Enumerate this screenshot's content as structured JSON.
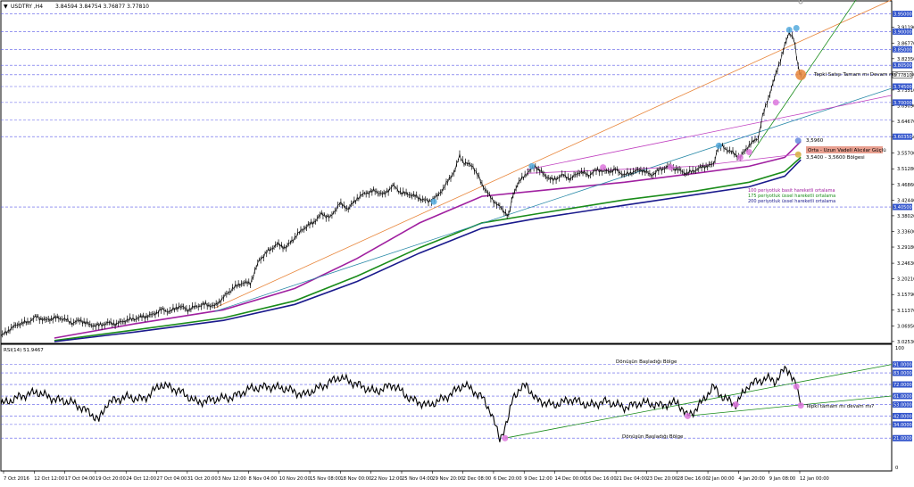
{
  "window": {
    "symbol_title": "USDTRY ,H4",
    "ohlc": "3.84594 3.84754 3.76877 3.77810",
    "menu_icon": "triangle-down-icon",
    "scroll_icon": "circle-icon"
  },
  "chart_data": [
    {
      "type": "line",
      "name": "price-panel",
      "title": "USDTRY ,H4",
      "ylim": [
        3.025,
        3.959
      ],
      "yticks": [
        "3.91190",
        "3.86770",
        "3.82350",
        "3.77930",
        "3.73510",
        "3.69090",
        "3.64670",
        "3.60250",
        "3.55700",
        "3.51280",
        "3.46860",
        "3.42440",
        "3.38020",
        "3.33600",
        "3.29180",
        "3.24630",
        "3.20210",
        "3.15790",
        "3.11370",
        "3.06950",
        "3.02530"
      ],
      "xticks": [
        "7 Oct 2016",
        "12 Oct 12:00",
        "17 Oct 04:00",
        "19 Oct 20:00",
        "24 Oct 12:00",
        "27 Oct 04:00",
        "31 Oct 20:00",
        "3 Nov 12:00",
        "8 Nov 04:00",
        "10 Nov 20:00",
        "15 Nov 08:00",
        "18 Nov 00:00",
        "22 Nov 12:00",
        "25 Nov 04:00",
        "29 Nov 20:00",
        "2 Dec 08:00",
        "6 Dec 20:00",
        "9 Dec 12:00",
        "14 Dec 00:00",
        "16 Dec 16:00",
        "21 Dec 04:00",
        "23 Dec 20:00",
        "28 Dec 16:00",
        "2 Jan 00:00",
        "4 Jan 20:00",
        "9 Jan 08:00",
        "12 Jan 00:00"
      ],
      "price_marks": [
        {
          "price": "3.95000",
          "value": 3.95
        },
        {
          "price": "3.90000",
          "value": 3.9
        },
        {
          "price": "3.85000",
          "value": 3.85
        },
        {
          "price": "3.80500",
          "value": 3.805
        },
        {
          "price": "3.77810",
          "value": 3.7781
        },
        {
          "price": "3.74500",
          "value": 3.745
        },
        {
          "price": "3.70000",
          "value": 3.7
        },
        {
          "price": "3.60350",
          "value": 3.6035
        },
        {
          "price": "3.40500",
          "value": 3.405
        }
      ],
      "hlines": [
        3.95,
        3.9,
        3.85,
        3.805,
        3.7781,
        3.745,
        3.7,
        3.65,
        3.6035,
        3.405
      ],
      "close_path": [
        [
          0,
          3.04
        ],
        [
          10,
          3.06
        ],
        [
          20,
          3.075
        ],
        [
          30,
          3.08
        ],
        [
          40,
          3.095
        ],
        [
          50,
          3.085
        ],
        [
          60,
          3.092
        ],
        [
          70,
          3.09
        ],
        [
          80,
          3.078
        ],
        [
          90,
          3.085
        ],
        [
          100,
          3.072
        ],
        [
          110,
          3.07
        ],
        [
          120,
          3.078
        ],
        [
          130,
          3.075
        ],
        [
          140,
          3.085
        ],
        [
          150,
          3.09
        ],
        [
          160,
          3.095
        ],
        [
          170,
          3.1
        ],
        [
          180,
          3.115
        ],
        [
          190,
          3.11
        ],
        [
          200,
          3.125
        ],
        [
          210,
          3.115
        ],
        [
          220,
          3.125
        ],
        [
          230,
          3.13
        ],
        [
          240,
          3.125
        ],
        [
          250,
          3.15
        ],
        [
          260,
          3.175
        ],
        [
          270,
          3.19
        ],
        [
          280,
          3.19
        ],
        [
          290,
          3.255
        ],
        [
          300,
          3.28
        ],
        [
          310,
          3.3
        ],
        [
          320,
          3.29
        ],
        [
          330,
          3.32
        ],
        [
          340,
          3.345
        ],
        [
          350,
          3.36
        ],
        [
          360,
          3.385
        ],
        [
          370,
          3.375
        ],
        [
          380,
          3.415
        ],
        [
          390,
          3.4
        ],
        [
          400,
          3.43
        ],
        [
          410,
          3.445
        ],
        [
          420,
          3.45
        ],
        [
          430,
          3.44
        ],
        [
          440,
          3.465
        ],
        [
          450,
          3.445
        ],
        [
          460,
          3.44
        ],
        [
          470,
          3.43
        ],
        [
          480,
          3.42
        ],
        [
          490,
          3.435
        ],
        [
          500,
          3.47
        ],
        [
          510,
          3.51
        ],
        [
          515,
          3.55
        ],
        [
          520,
          3.53
        ],
        [
          530,
          3.52
        ],
        [
          540,
          3.47
        ],
        [
          550,
          3.43
        ],
        [
          560,
          3.405
        ],
        [
          570,
          3.38
        ],
        [
          575,
          3.44
        ],
        [
          580,
          3.47
        ],
        [
          590,
          3.5
        ],
        [
          600,
          3.52
        ],
        [
          610,
          3.495
        ],
        [
          620,
          3.48
        ],
        [
          630,
          3.495
        ],
        [
          640,
          3.485
        ],
        [
          650,
          3.505
        ],
        [
          660,
          3.495
        ],
        [
          670,
          3.51
        ],
        [
          680,
          3.505
        ],
        [
          690,
          3.51
        ],
        [
          700,
          3.495
        ],
        [
          710,
          3.505
        ],
        [
          720,
          3.51
        ],
        [
          730,
          3.495
        ],
        [
          740,
          3.51
        ],
        [
          750,
          3.52
        ],
        [
          760,
          3.51
        ],
        [
          770,
          3.5
        ],
        [
          780,
          3.51
        ],
        [
          790,
          3.52
        ],
        [
          800,
          3.525
        ],
        [
          805,
          3.575
        ],
        [
          810,
          3.575
        ],
        [
          820,
          3.56
        ],
        [
          830,
          3.545
        ],
        [
          840,
          3.58
        ],
        [
          850,
          3.6
        ],
        [
          855,
          3.66
        ],
        [
          860,
          3.7
        ],
        [
          865,
          3.74
        ],
        [
          870,
          3.78
        ],
        [
          875,
          3.82
        ],
        [
          880,
          3.86
        ],
        [
          885,
          3.9
        ],
        [
          890,
          3.88
        ],
        [
          895,
          3.8
        ],
        [
          898,
          3.778
        ]
      ],
      "moving_averages": [
        {
          "name": "100 periyotluk basit hareketli ortalama",
          "color": "#a020a0",
          "points": [
            [
              60,
              3.035
            ],
            [
              150,
              3.075
            ],
            [
              250,
              3.115
            ],
            [
              330,
              3.175
            ],
            [
              400,
              3.26
            ],
            [
              470,
              3.36
            ],
            [
              540,
              3.435
            ],
            [
              600,
              3.45
            ],
            [
              700,
              3.475
            ],
            [
              780,
              3.5
            ],
            [
              840,
              3.52
            ],
            [
              880,
              3.545
            ],
            [
              898,
              3.59
            ]
          ]
        },
        {
          "name": "175 periyotluk üssel hareketli ortalama",
          "color": "#1a8c1a",
          "points": [
            [
              60,
              3.028
            ],
            [
              150,
              3.058
            ],
            [
              250,
              3.092
            ],
            [
              330,
              3.14
            ],
            [
              400,
              3.21
            ],
            [
              470,
              3.29
            ],
            [
              540,
              3.36
            ],
            [
              600,
              3.385
            ],
            [
              700,
              3.425
            ],
            [
              780,
              3.45
            ],
            [
              840,
              3.475
            ],
            [
              880,
              3.505
            ],
            [
              898,
              3.545
            ]
          ]
        },
        {
          "name": "200 periyotluk üssel hareketli ortalama",
          "color": "#1a1a8c",
          "points": [
            [
              60,
              3.025
            ],
            [
              150,
              3.052
            ],
            [
              250,
              3.085
            ],
            [
              330,
              3.13
            ],
            [
              400,
              3.195
            ],
            [
              470,
              3.275
            ],
            [
              540,
              3.345
            ],
            [
              600,
              3.372
            ],
            [
              700,
              3.41
            ],
            [
              780,
              3.44
            ],
            [
              840,
              3.462
            ],
            [
              880,
              3.492
            ],
            [
              898,
              3.538
            ]
          ]
        }
      ],
      "trendlines": [
        {
          "color": "#e8853a",
          "points": [
            [
              240,
              3.12
            ],
            [
              1000,
              3.99
            ]
          ]
        },
        {
          "color": "#1a8c1a",
          "points": [
            [
              840,
              3.545
            ],
            [
              960,
              3.99
            ]
          ]
        },
        {
          "color": "#2a8aa8",
          "points": [
            [
              240,
              3.11
            ],
            [
              1000,
              3.74
            ]
          ]
        },
        {
          "color": "#c040c0",
          "points": [
            [
              590,
              3.51
            ],
            [
              1000,
              3.72
            ]
          ]
        },
        {
          "color": "#c040c0",
          "points": [
            [
              590,
              3.5
            ],
            [
              780,
              3.52
            ],
            [
              898,
              3.555
            ]
          ]
        }
      ],
      "marked_points": [
        {
          "x": 885,
          "y": 3.905,
          "color": "#55aadd"
        },
        {
          "x": 893,
          "y": 3.91,
          "color": "#55aadd"
        },
        {
          "x": 870,
          "y": 3.7,
          "color": "#dd77dd"
        },
        {
          "x": 806,
          "y": 3.578,
          "color": "#55aadd"
        },
        {
          "x": 830,
          "y": 3.545,
          "color": "#dd77dd"
        },
        {
          "x": 840,
          "y": 3.56,
          "color": "#dd77dd"
        },
        {
          "x": 752,
          "y": 3.517,
          "color": "#dd77dd"
        },
        {
          "x": 676,
          "y": 3.517,
          "color": "#dd77dd"
        },
        {
          "x": 596,
          "y": 3.52,
          "color": "#55aadd"
        },
        {
          "x": 486,
          "y": 3.42,
          "color": "#55aadd"
        },
        {
          "x": 895,
          "y": 3.592,
          "color": "#6688dd"
        },
        {
          "x": 895,
          "y": 3.553,
          "color": "#d8b040"
        },
        {
          "x": 898,
          "y": 3.778,
          "color": "#e8853a"
        }
      ],
      "annotations": {
        "tepki": "Tepki Satışı Tamam mı Devam mı?",
        "orta_uzun": "Orta - Uzun Vadeli Alıcılar Güçlü",
        "level_3560": "3,5960",
        "zone": "3,5400 - 3,5600 Bölgesi",
        "legend": [
          "100 periyotluk basit hareketli ortalama",
          "175 periyotluk üssel hareketli ortalama",
          "200 periyotluk üssel hareketli ortalama"
        ]
      },
      "grid": false
    },
    {
      "type": "line",
      "name": "rsi-panel",
      "title": "RSI(14) 51.9467",
      "ylim": [
        0,
        100
      ],
      "yticks_top": "100",
      "yticks_bottom": "0",
      "levels": [
        {
          "label": "91.0000",
          "value": 91
        },
        {
          "label": "83.0000",
          "value": 83
        },
        {
          "label": "72.0000",
          "value": 72
        },
        {
          "label": "61.0000",
          "value": 61
        },
        {
          "label": "53.0000",
          "value": 53
        },
        {
          "label": "42.0000",
          "value": 42
        },
        {
          "label": "34.0000",
          "value": 34
        },
        {
          "label": "21.0000",
          "value": 21
        }
      ],
      "rsi_path": [
        [
          0,
          53
        ],
        [
          20,
          60
        ],
        [
          40,
          65
        ],
        [
          60,
          58
        ],
        [
          80,
          55
        ],
        [
          100,
          45
        ],
        [
          110,
          38
        ],
        [
          120,
          55
        ],
        [
          140,
          60
        ],
        [
          160,
          58
        ],
        [
          180,
          72
        ],
        [
          200,
          66
        ],
        [
          220,
          55
        ],
        [
          240,
          58
        ],
        [
          260,
          60
        ],
        [
          280,
          68
        ],
        [
          300,
          70
        ],
        [
          320,
          68
        ],
        [
          340,
          62
        ],
        [
          360,
          70
        ],
        [
          380,
          79
        ],
        [
          400,
          72
        ],
        [
          420,
          65
        ],
        [
          440,
          72
        ],
        [
          460,
          58
        ],
        [
          480,
          52
        ],
        [
          500,
          60
        ],
        [
          520,
          72
        ],
        [
          540,
          60
        ],
        [
          550,
          46
        ],
        [
          560,
          20
        ],
        [
          570,
          40
        ],
        [
          575,
          61
        ],
        [
          590,
          72
        ],
        [
          600,
          58
        ],
        [
          620,
          52
        ],
        [
          640,
          58
        ],
        [
          660,
          52
        ],
        [
          680,
          56
        ],
        [
          700,
          50
        ],
        [
          720,
          55
        ],
        [
          740,
          52
        ],
        [
          760,
          55
        ],
        [
          770,
          42
        ],
        [
          780,
          48
        ],
        [
          800,
          70
        ],
        [
          810,
          60
        ],
        [
          825,
          53
        ],
        [
          840,
          72
        ],
        [
          860,
          78
        ],
        [
          870,
          75
        ],
        [
          880,
          87
        ],
        [
          885,
          85
        ],
        [
          893,
          70
        ],
        [
          898,
          52
        ]
      ],
      "trendlines": [
        {
          "color": "#1a8c1a",
          "points": [
            [
              566,
              21
            ],
            [
              1000,
              91
            ]
          ]
        },
        {
          "color": "#1a8c1a",
          "points": [
            [
              770,
              42
            ],
            [
              1000,
              61
            ]
          ]
        }
      ],
      "marked_points": [
        {
          "x": 566,
          "y": 21,
          "color": "#dd77dd"
        },
        {
          "x": 771,
          "y": 42,
          "color": "#dd77dd"
        },
        {
          "x": 825,
          "y": 53,
          "color": "#dd77dd"
        },
        {
          "x": 893,
          "y": 70,
          "color": "#dd77dd"
        },
        {
          "x": 898,
          "y": 52,
          "color": "#dd77dd"
        }
      ],
      "annotations": {
        "top_zone": "Dönüşün Başladığı Bölge",
        "bottom_zone": "Dönüşün Başladığı Bölge",
        "rsi_tepki": "Tepki tamam mı devam mı?"
      },
      "grid": false
    }
  ]
}
